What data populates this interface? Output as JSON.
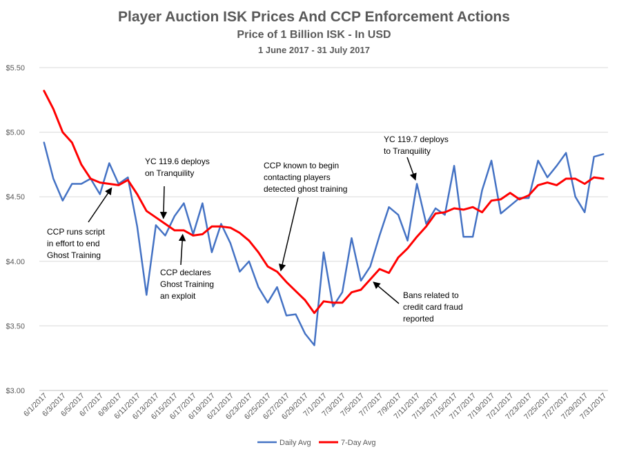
{
  "chart_data": {
    "type": "line",
    "title": "Player Auction ISK Prices And CCP Enforcement Actions",
    "subtitle": "Price of 1 Billion ISK - In USD",
    "date_range": "1 June 2017 - 31 July 2017",
    "ylim": [
      3.0,
      5.5
    ],
    "ytick_labels": [
      "$3.00",
      "$3.50",
      "$4.00",
      "$4.50",
      "$5.00",
      "$5.50"
    ],
    "grid": "horizontal",
    "legend_position": "bottom",
    "x": [
      "6/1/2017",
      "6/2/2017",
      "6/3/2017",
      "6/4/2017",
      "6/5/2017",
      "6/6/2017",
      "6/7/2017",
      "6/8/2017",
      "6/9/2017",
      "6/10/2017",
      "6/11/2017",
      "6/12/2017",
      "6/13/2017",
      "6/14/2017",
      "6/15/2017",
      "6/16/2017",
      "6/17/2017",
      "6/18/2017",
      "6/19/2017",
      "6/20/2017",
      "6/21/2017",
      "6/22/2017",
      "6/23/2017",
      "6/24/2017",
      "6/25/2017",
      "6/26/2017",
      "6/27/2017",
      "6/28/2017",
      "6/29/2017",
      "6/30/2017",
      "7/1/2017",
      "7/2/2017",
      "7/3/2017",
      "7/4/2017",
      "7/5/2017",
      "7/6/2017",
      "7/7/2017",
      "7/8/2017",
      "7/9/2017",
      "7/10/2017",
      "7/11/2017",
      "7/12/2017",
      "7/13/2017",
      "7/14/2017",
      "7/15/2017",
      "7/16/2017",
      "7/17/2017",
      "7/18/2017",
      "7/19/2017",
      "7/20/2017",
      "7/21/2017",
      "7/22/2017",
      "7/23/2017",
      "7/24/2017",
      "7/25/2017",
      "7/26/2017",
      "7/27/2017",
      "7/28/2017",
      "7/29/2017",
      "7/30/2017",
      "7/31/2017"
    ],
    "xtick_labels": [
      "6/1/2017",
      "6/3/2017",
      "6/5/2017",
      "6/7/2017",
      "6/9/2017",
      "6/11/2017",
      "6/13/2017",
      "6/15/2017",
      "6/17/2017",
      "6/19/2017",
      "6/21/2017",
      "6/23/2017",
      "6/25/2017",
      "6/27/2017",
      "6/29/2017",
      "7/1/2017",
      "7/3/2017",
      "7/5/2017",
      "7/7/2017",
      "7/9/2017",
      "7/11/2017",
      "7/13/2017",
      "7/15/2017",
      "7/17/2017",
      "7/19/2017",
      "7/21/2017",
      "7/23/2017",
      "7/25/2017",
      "7/27/2017",
      "7/29/2017",
      "7/31/2017"
    ],
    "series": [
      {
        "name": "Daily Avg",
        "color": "#4472C4",
        "values": [
          4.92,
          4.64,
          4.47,
          4.6,
          4.6,
          4.64,
          4.52,
          4.76,
          4.6,
          4.65,
          4.27,
          3.74,
          4.28,
          4.2,
          4.35,
          4.45,
          4.21,
          4.45,
          4.07,
          4.29,
          4.14,
          3.92,
          4.0,
          3.8,
          3.68,
          3.8,
          3.58,
          3.59,
          3.44,
          3.35,
          4.07,
          3.65,
          3.76,
          4.18,
          3.85,
          3.96,
          4.2,
          4.42,
          4.36,
          4.16,
          4.6,
          4.29,
          4.41,
          4.36,
          4.74,
          4.19,
          4.19,
          4.55,
          4.78,
          4.37,
          4.43,
          4.49,
          4.49,
          4.78,
          4.65,
          4.74,
          4.84,
          4.5,
          4.38,
          4.81,
          4.83
        ]
      },
      {
        "name": "7-Day Avg",
        "color": "#FF0000",
        "values": [
          5.32,
          5.18,
          5.0,
          4.92,
          4.75,
          4.64,
          4.61,
          4.6,
          4.59,
          4.63,
          4.52,
          4.39,
          4.34,
          4.29,
          4.24,
          4.24,
          4.2,
          4.21,
          4.27,
          4.27,
          4.26,
          4.22,
          4.16,
          4.07,
          3.96,
          3.92,
          3.84,
          3.77,
          3.7,
          3.6,
          3.69,
          3.68,
          3.68,
          3.76,
          3.78,
          3.86,
          3.94,
          3.91,
          4.03,
          4.1,
          4.19,
          4.27,
          4.37,
          4.38,
          4.41,
          4.4,
          4.42,
          4.38,
          4.47,
          4.48,
          4.53,
          4.48,
          4.51,
          4.59,
          4.61,
          4.59,
          4.64,
          4.64,
          4.6,
          4.65,
          4.64
        ]
      }
    ],
    "annotations": [
      {
        "id": "ghost-script",
        "lines": [
          "CCP runs script",
          "in effort to end",
          "Ghost Training"
        ],
        "target_index": 7.5,
        "target_series": 1
      },
      {
        "id": "yc1196",
        "lines": [
          "YC 119.6 deploys",
          "on Tranquility"
        ],
        "target_index": 12.8,
        "target_series": 1
      },
      {
        "id": "exploit",
        "lines": [
          "CCP declares",
          "Ghost Training",
          "an exploit"
        ],
        "target_index": 14.9,
        "target_series": 1
      },
      {
        "id": "contacting",
        "lines": [
          "CCP known to begin",
          "contacting players",
          "detected ghost training"
        ],
        "target_index": 25.3,
        "target_series": 1
      },
      {
        "id": "yc1197",
        "lines": [
          "YC 119.7 deploys",
          "to Tranquility"
        ],
        "target_index": 40.0,
        "target_series": 0
      },
      {
        "id": "bans",
        "lines": [
          "Bans related to",
          "credit card fraud",
          "reported"
        ],
        "target_index": 35.0,
        "target_series": 1
      }
    ]
  }
}
